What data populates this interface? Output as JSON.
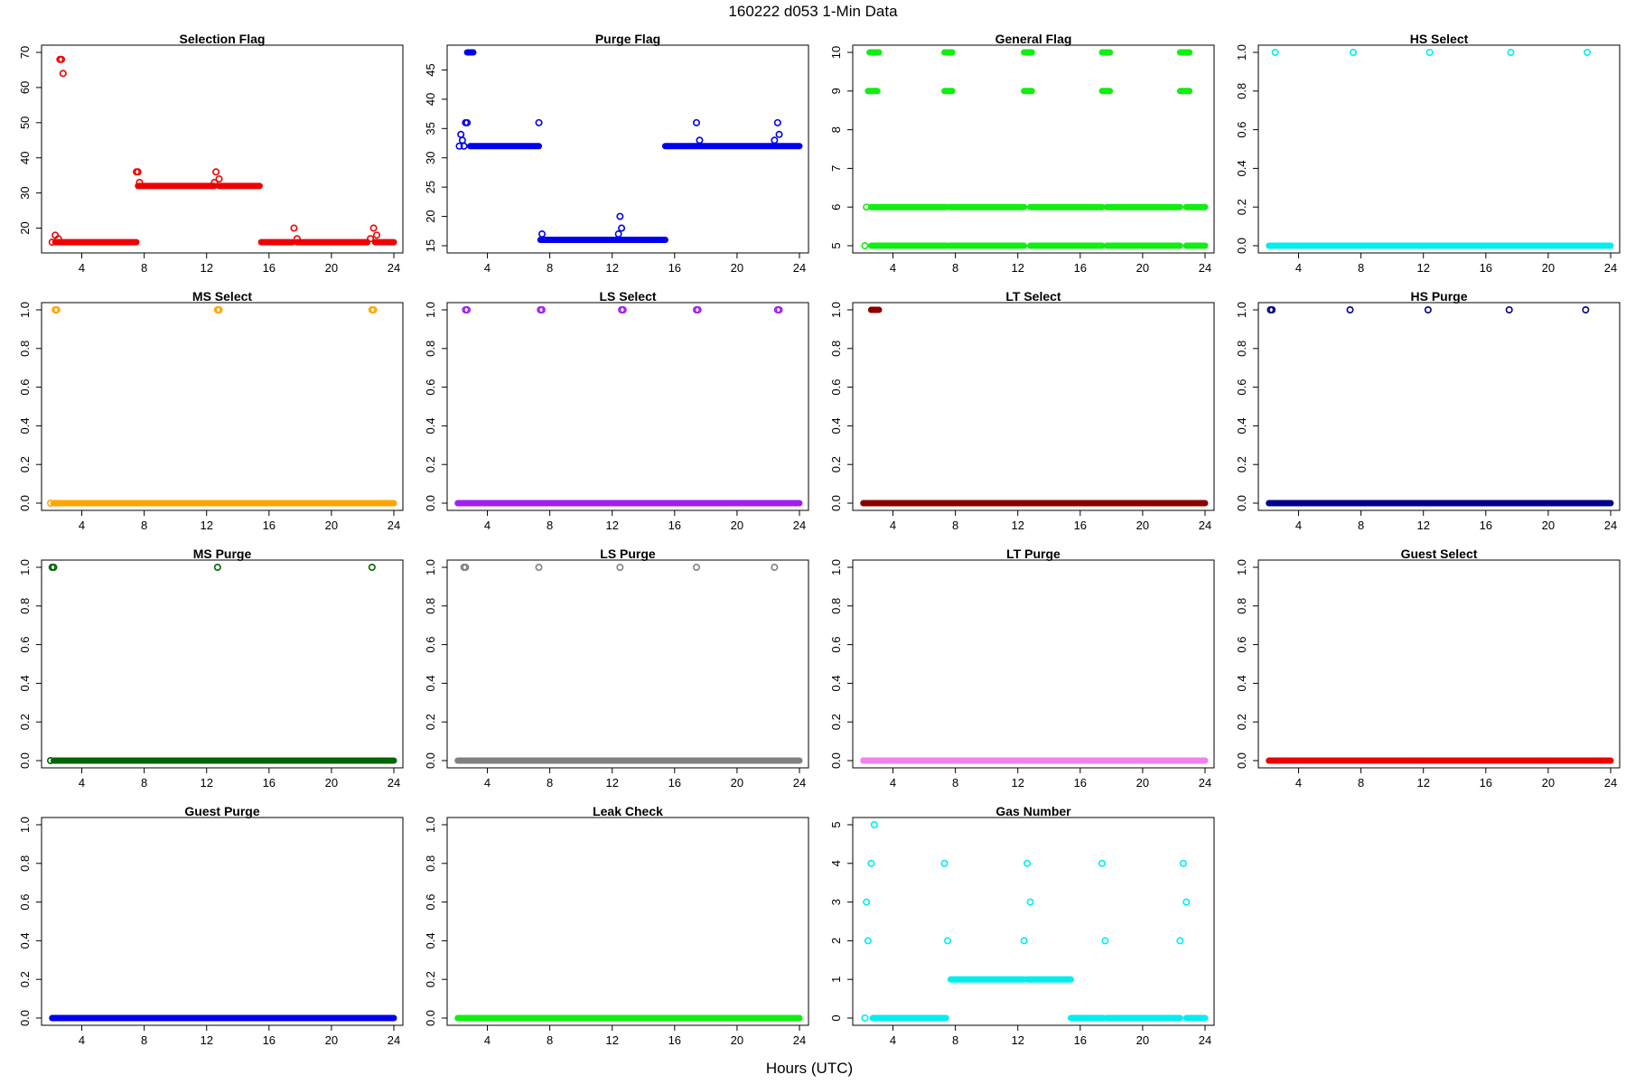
{
  "title": "160222   d053   1-Min Data",
  "xlabel": "Hours (UTC)",
  "chart_data": [
    {
      "title": "Selection Flag",
      "type": "scatter",
      "color": "#ee0000",
      "xlim": [
        2,
        24
      ],
      "ylim": [
        15,
        70
      ],
      "yticks": [
        20,
        30,
        40,
        50,
        60,
        70
      ],
      "segments": [
        {
          "x": [
            2.3,
            7.5
          ],
          "y": 16
        },
        {
          "x": [
            7.6,
            12.5
          ],
          "y": 32
        },
        {
          "x": [
            12.8,
            15.4
          ],
          "y": 32
        },
        {
          "x": [
            15.5,
            17.5
          ],
          "y": 16
        },
        {
          "x": [
            17.8,
            22.3
          ],
          "y": 16
        },
        {
          "x": [
            22.8,
            24
          ],
          "y": 16
        }
      ],
      "points": [
        [
          2.1,
          16
        ],
        [
          2.3,
          18
        ],
        [
          2.5,
          17
        ],
        [
          2.6,
          68
        ],
        [
          2.7,
          68
        ],
        [
          2.8,
          64
        ],
        [
          7.5,
          36
        ],
        [
          7.6,
          36
        ],
        [
          7.7,
          33
        ],
        [
          12.5,
          33
        ],
        [
          12.6,
          36
        ],
        [
          12.8,
          34
        ],
        [
          17.6,
          20
        ],
        [
          17.8,
          17
        ],
        [
          22.5,
          17
        ],
        [
          22.7,
          20
        ],
        [
          22.9,
          18
        ]
      ]
    },
    {
      "title": "Purge Flag",
      "type": "scatter",
      "color": "#0000ee",
      "xlim": [
        2,
        24
      ],
      "ylim": [
        15,
        48
      ],
      "yticks": [
        15,
        20,
        25,
        30,
        35,
        40,
        45
      ],
      "segments": [
        {
          "x": [
            2.9,
            7.3
          ],
          "y": 32
        },
        {
          "x": [
            7.4,
            12.3
          ],
          "y": 16
        },
        {
          "x": [
            12.4,
            15.4
          ],
          "y": 16
        },
        {
          "x": [
            15.4,
            24
          ],
          "y": 32
        },
        {
          "x": [
            2.7,
            3.1
          ],
          "y": 48
        }
      ],
      "points": [
        [
          2.2,
          32
        ],
        [
          2.3,
          34
        ],
        [
          2.4,
          33
        ],
        [
          2.5,
          32
        ],
        [
          2.6,
          36
        ],
        [
          2.7,
          36
        ],
        [
          7.3,
          36
        ],
        [
          7.5,
          17
        ],
        [
          12.4,
          17
        ],
        [
          12.5,
          20
        ],
        [
          12.6,
          18
        ],
        [
          17.4,
          36
        ],
        [
          17.6,
          33
        ],
        [
          22.4,
          33
        ],
        [
          22.6,
          36
        ],
        [
          22.7,
          34
        ]
      ]
    },
    {
      "title": "General Flag",
      "type": "scatter",
      "color": "#11ee11",
      "xlim": [
        2,
        24
      ],
      "ylim": [
        5,
        10
      ],
      "yticks": [
        5,
        6,
        7,
        8,
        9,
        10
      ],
      "segments": [
        {
          "x": [
            2.6,
            7.4
          ],
          "y": 5
        },
        {
          "x": [
            7.6,
            12.4
          ],
          "y": 5
        },
        {
          "x": [
            12.8,
            17.4
          ],
          "y": 5
        },
        {
          "x": [
            17.7,
            22.4
          ],
          "y": 5
        },
        {
          "x": [
            22.8,
            24
          ],
          "y": 5
        },
        {
          "x": [
            2.6,
            7.4
          ],
          "y": 6
        },
        {
          "x": [
            7.6,
            12.4
          ],
          "y": 6
        },
        {
          "x": [
            12.8,
            17.4
          ],
          "y": 6
        },
        {
          "x": [
            17.7,
            22.4
          ],
          "y": 6
        },
        {
          "x": [
            22.8,
            24
          ],
          "y": 6
        },
        {
          "x": [
            2.4,
            3.0
          ],
          "y": 9
        },
        {
          "x": [
            7.3,
            7.8
          ],
          "y": 9
        },
        {
          "x": [
            12.4,
            12.9
          ],
          "y": 9
        },
        {
          "x": [
            17.4,
            17.9
          ],
          "y": 9
        },
        {
          "x": [
            22.4,
            23.0
          ],
          "y": 9
        },
        {
          "x": [
            2.5,
            3.1
          ],
          "y": 10
        },
        {
          "x": [
            7.3,
            7.8
          ],
          "y": 10
        },
        {
          "x": [
            12.4,
            12.9
          ],
          "y": 10
        },
        {
          "x": [
            17.4,
            17.9
          ],
          "y": 10
        },
        {
          "x": [
            22.4,
            23.0
          ],
          "y": 10
        }
      ],
      "points": [
        [
          2.2,
          5
        ],
        [
          2.3,
          6
        ]
      ]
    },
    {
      "title": "HS Select",
      "type": "scatter",
      "color": "#00eeee",
      "xlim": [
        2,
        24
      ],
      "ylim": [
        0,
        1
      ],
      "yticks": [
        0.0,
        0.2,
        0.4,
        0.6,
        0.8,
        1.0
      ],
      "segments": [
        {
          "x": [
            2.1,
            24
          ],
          "y": 0
        }
      ],
      "points": [
        [
          2.5,
          1
        ],
        [
          7.5,
          1
        ],
        [
          12.4,
          1
        ],
        [
          17.6,
          1
        ],
        [
          22.5,
          1
        ]
      ]
    },
    {
      "title": "MS Select",
      "type": "scatter",
      "color": "#ffa500",
      "xlim": [
        2,
        24
      ],
      "ylim": [
        0,
        1
      ],
      "yticks": [
        0.0,
        0.2,
        0.4,
        0.6,
        0.8,
        1.0
      ],
      "segments": [
        {
          "x": [
            2.2,
            24
          ],
          "y": 0
        }
      ],
      "points": [
        [
          2.0,
          0
        ],
        [
          2.3,
          1
        ],
        [
          2.4,
          1
        ],
        [
          12.7,
          1
        ],
        [
          12.8,
          1
        ],
        [
          22.6,
          1
        ],
        [
          22.7,
          1
        ]
      ]
    },
    {
      "title": "LS Select",
      "type": "scatter",
      "color": "#a020f0",
      "xlim": [
        2,
        24
      ],
      "ylim": [
        0,
        1
      ],
      "yticks": [
        0.0,
        0.2,
        0.4,
        0.6,
        0.8,
        1.0
      ],
      "segments": [
        {
          "x": [
            2.1,
            24
          ],
          "y": 0
        }
      ],
      "points": [
        [
          2.6,
          1
        ],
        [
          2.7,
          1
        ],
        [
          7.4,
          1
        ],
        [
          7.5,
          1
        ],
        [
          12.6,
          1
        ],
        [
          12.7,
          1
        ],
        [
          17.4,
          1
        ],
        [
          17.5,
          1
        ],
        [
          22.6,
          1
        ],
        [
          22.7,
          1
        ]
      ]
    },
    {
      "title": "LT Select",
      "type": "scatter",
      "color": "#8b0000",
      "xlim": [
        2,
        24
      ],
      "ylim": [
        0,
        1
      ],
      "yticks": [
        0.0,
        0.2,
        0.4,
        0.6,
        0.8,
        1.0
      ],
      "segments": [
        {
          "x": [
            2.1,
            24
          ],
          "y": 0
        },
        {
          "x": [
            2.6,
            3.1
          ],
          "y": 1
        }
      ],
      "points": []
    },
    {
      "title": "HS Purge",
      "type": "scatter",
      "color": "#00008b",
      "xlim": [
        2,
        24
      ],
      "ylim": [
        0,
        1
      ],
      "yticks": [
        0.0,
        0.2,
        0.4,
        0.6,
        0.8,
        1.0
      ],
      "segments": [
        {
          "x": [
            2.1,
            24
          ],
          "y": 0
        }
      ],
      "points": [
        [
          2.2,
          1
        ],
        [
          2.3,
          1
        ],
        [
          7.3,
          1
        ],
        [
          12.3,
          1
        ],
        [
          17.5,
          1
        ],
        [
          22.4,
          1
        ]
      ]
    },
    {
      "title": "MS Purge",
      "type": "scatter",
      "color": "#006400",
      "xlim": [
        2,
        24
      ],
      "ylim": [
        0,
        1
      ],
      "yticks": [
        0.0,
        0.2,
        0.4,
        0.6,
        0.8,
        1.0
      ],
      "segments": [
        {
          "x": [
            2.2,
            24
          ],
          "y": 0
        }
      ],
      "points": [
        [
          2.0,
          0
        ],
        [
          2.1,
          1
        ],
        [
          2.2,
          1
        ],
        [
          12.7,
          1
        ],
        [
          22.6,
          1
        ]
      ]
    },
    {
      "title": "LS Purge",
      "type": "scatter",
      "color": "#808080",
      "xlim": [
        2,
        24
      ],
      "ylim": [
        0,
        1
      ],
      "yticks": [
        0.0,
        0.2,
        0.4,
        0.6,
        0.8,
        1.0
      ],
      "segments": [
        {
          "x": [
            2.1,
            24
          ],
          "y": 0
        }
      ],
      "points": [
        [
          2.5,
          1
        ],
        [
          2.6,
          1
        ],
        [
          7.3,
          1
        ],
        [
          12.5,
          1
        ],
        [
          17.4,
          1
        ],
        [
          22.4,
          1
        ]
      ]
    },
    {
      "title": "LT Purge",
      "type": "scatter",
      "color": "#ee82ee",
      "xlim": [
        2,
        24
      ],
      "ylim": [
        0,
        1
      ],
      "yticks": [
        0.0,
        0.2,
        0.4,
        0.6,
        0.8,
        1.0
      ],
      "segments": [
        {
          "x": [
            2.1,
            24
          ],
          "y": 0
        }
      ],
      "points": []
    },
    {
      "title": "Guest Select",
      "type": "scatter",
      "color": "#ee0000",
      "xlim": [
        2,
        24
      ],
      "ylim": [
        0,
        1
      ],
      "yticks": [
        0.0,
        0.2,
        0.4,
        0.6,
        0.8,
        1.0
      ],
      "segments": [
        {
          "x": [
            2.1,
            24
          ],
          "y": 0
        }
      ],
      "points": []
    },
    {
      "title": "Guest Purge",
      "type": "scatter",
      "color": "#0000ee",
      "xlim": [
        2,
        24
      ],
      "ylim": [
        0,
        1
      ],
      "yticks": [
        0.0,
        0.2,
        0.4,
        0.6,
        0.8,
        1.0
      ],
      "segments": [
        {
          "x": [
            2.1,
            24
          ],
          "y": 0
        }
      ],
      "points": []
    },
    {
      "title": "Leak Check",
      "type": "scatter",
      "color": "#11ee11",
      "xlim": [
        2,
        24
      ],
      "ylim": [
        0,
        1
      ],
      "yticks": [
        0.0,
        0.2,
        0.4,
        0.6,
        0.8,
        1.0
      ],
      "segments": [
        {
          "x": [
            2.1,
            24
          ],
          "y": 0
        }
      ],
      "points": []
    },
    {
      "title": "Gas Number",
      "type": "scatter",
      "color": "#00eeee",
      "xlim": [
        2,
        24
      ],
      "ylim": [
        0,
        5
      ],
      "yticks": [
        0,
        1,
        2,
        3,
        4,
        5
      ],
      "segments": [
        {
          "x": [
            2.7,
            7.4
          ],
          "y": 0
        },
        {
          "x": [
            7.7,
            12.4
          ],
          "y": 1
        },
        {
          "x": [
            12.6,
            15.4
          ],
          "y": 1
        },
        {
          "x": [
            15.4,
            17.5
          ],
          "y": 0
        },
        {
          "x": [
            17.7,
            22.4
          ],
          "y": 0
        },
        {
          "x": [
            22.8,
            24
          ],
          "y": 0
        }
      ],
      "points": [
        [
          2.2,
          0
        ],
        [
          2.3,
          3
        ],
        [
          2.4,
          2
        ],
        [
          2.6,
          4
        ],
        [
          2.8,
          5
        ],
        [
          7.3,
          4
        ],
        [
          7.5,
          2
        ],
        [
          12.4,
          2
        ],
        [
          12.6,
          4
        ],
        [
          12.8,
          3
        ],
        [
          17.4,
          4
        ],
        [
          17.6,
          2
        ],
        [
          22.4,
          2
        ],
        [
          22.6,
          4
        ],
        [
          22.8,
          3
        ]
      ]
    }
  ]
}
